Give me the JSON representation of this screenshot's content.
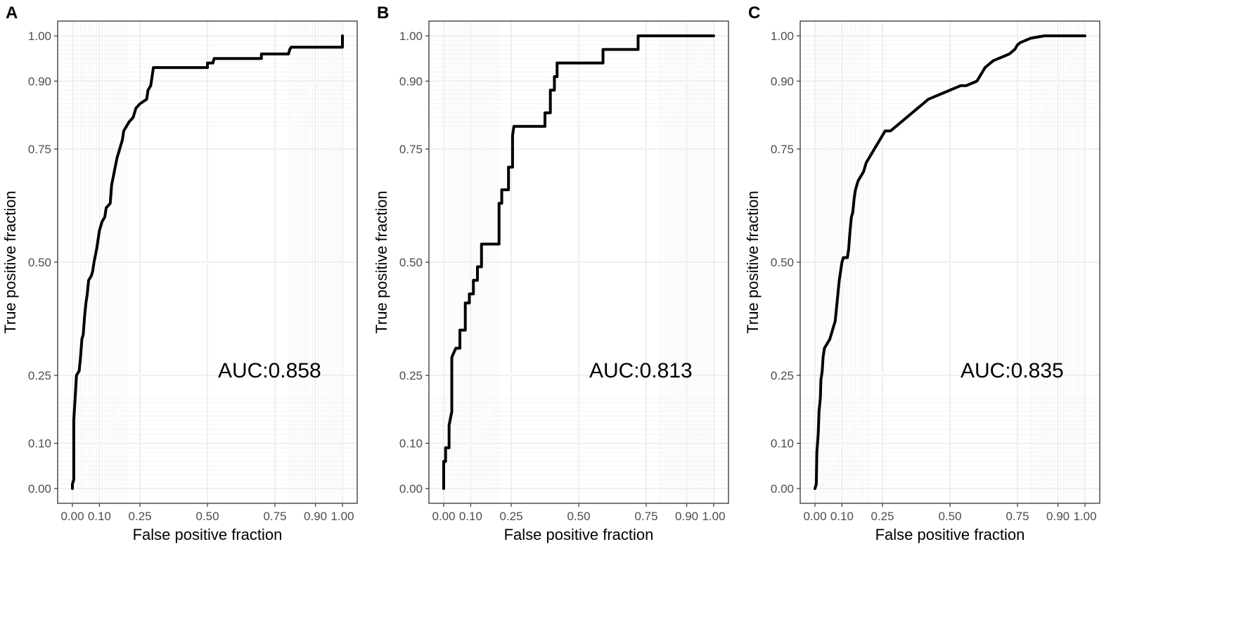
{
  "chart_data": [
    {
      "panel": "A",
      "type": "line",
      "xlabel": "False positive fraction",
      "ylabel": "True positive fraction",
      "xlim": [
        0,
        1
      ],
      "ylim": [
        0,
        1
      ],
      "x_ticks": [
        "0.00",
        "0.10",
        "0.25",
        "0.50",
        "0.75",
        "0.90",
        "1.00"
      ],
      "y_ticks": [
        "0.00",
        "0.10",
        "0.25",
        "0.50",
        "0.75",
        "0.90",
        "1.00"
      ],
      "annotation": "AUC:0.858",
      "series": [
        {
          "name": "ROC",
          "points": [
            [
              0,
              0
            ],
            [
              0,
              0.01
            ],
            [
              0.005,
              0.02
            ],
            [
              0.005,
              0.15
            ],
            [
              0.01,
              0.2
            ],
            [
              0.015,
              0.25
            ],
            [
              0.025,
              0.26
            ],
            [
              0.03,
              0.29
            ],
            [
              0.035,
              0.33
            ],
            [
              0.04,
              0.34
            ],
            [
              0.045,
              0.38
            ],
            [
              0.05,
              0.41
            ],
            [
              0.055,
              0.43
            ],
            [
              0.06,
              0.46
            ],
            [
              0.07,
              0.47
            ],
            [
              0.075,
              0.48
            ],
            [
              0.08,
              0.5
            ],
            [
              0.09,
              0.53
            ],
            [
              0.095,
              0.55
            ],
            [
              0.1,
              0.57
            ],
            [
              0.11,
              0.59
            ],
            [
              0.12,
              0.6
            ],
            [
              0.125,
              0.62
            ],
            [
              0.14,
              0.63
            ],
            [
              0.145,
              0.67
            ],
            [
              0.155,
              0.7
            ],
            [
              0.165,
              0.73
            ],
            [
              0.175,
              0.75
            ],
            [
              0.185,
              0.77
            ],
            [
              0.19,
              0.79
            ],
            [
              0.2,
              0.8
            ],
            [
              0.21,
              0.81
            ],
            [
              0.225,
              0.82
            ],
            [
              0.235,
              0.84
            ],
            [
              0.25,
              0.85
            ],
            [
              0.275,
              0.86
            ],
            [
              0.28,
              0.88
            ],
            [
              0.29,
              0.89
            ],
            [
              0.3,
              0.93
            ],
            [
              0.33,
              0.93
            ],
            [
              0.39,
              0.93
            ],
            [
              0.5,
              0.93
            ],
            [
              0.5,
              0.94
            ],
            [
              0.52,
              0.94
            ],
            [
              0.525,
              0.95
            ],
            [
              0.7,
              0.95
            ],
            [
              0.7,
              0.96
            ],
            [
              0.8,
              0.96
            ],
            [
              0.805,
              0.97
            ],
            [
              0.81,
              0.975
            ],
            [
              1,
              0.975
            ],
            [
              1,
              1
            ]
          ]
        }
      ]
    },
    {
      "panel": "B",
      "type": "line",
      "xlabel": "False positive fraction",
      "ylabel": "True positive fraction",
      "xlim": [
        0,
        1
      ],
      "ylim": [
        0,
        1
      ],
      "x_ticks": [
        "0.00",
        "0.10",
        "0.25",
        "0.50",
        "0.75",
        "0.90",
        "1.00"
      ],
      "y_ticks": [
        "0.00",
        "0.10",
        "0.25",
        "0.50",
        "0.75",
        "0.90",
        "1.00"
      ],
      "annotation": "AUC:0.813",
      "series": [
        {
          "name": "ROC",
          "points": [
            [
              0,
              0
            ],
            [
              0,
              0.06
            ],
            [
              0.007,
              0.06
            ],
            [
              0.007,
              0.09
            ],
            [
              0.02,
              0.09
            ],
            [
              0.02,
              0.14
            ],
            [
              0.03,
              0.17
            ],
            [
              0.03,
              0.29
            ],
            [
              0.045,
              0.31
            ],
            [
              0.06,
              0.31
            ],
            [
              0.06,
              0.35
            ],
            [
              0.08,
              0.35
            ],
            [
              0.08,
              0.41
            ],
            [
              0.095,
              0.41
            ],
            [
              0.095,
              0.43
            ],
            [
              0.11,
              0.43
            ],
            [
              0.11,
              0.46
            ],
            [
              0.125,
              0.46
            ],
            [
              0.125,
              0.49
            ],
            [
              0.14,
              0.49
            ],
            [
              0.14,
              0.54
            ],
            [
              0.205,
              0.54
            ],
            [
              0.205,
              0.63
            ],
            [
              0.215,
              0.63
            ],
            [
              0.215,
              0.66
            ],
            [
              0.24,
              0.66
            ],
            [
              0.24,
              0.71
            ],
            [
              0.255,
              0.71
            ],
            [
              0.255,
              0.78
            ],
            [
              0.26,
              0.8
            ],
            [
              0.3,
              0.8
            ],
            [
              0.375,
              0.8
            ],
            [
              0.375,
              0.83
            ],
            [
              0.395,
              0.83
            ],
            [
              0.395,
              0.88
            ],
            [
              0.41,
              0.88
            ],
            [
              0.41,
              0.91
            ],
            [
              0.42,
              0.91
            ],
            [
              0.42,
              0.94
            ],
            [
              0.59,
              0.94
            ],
            [
              0.59,
              0.97
            ],
            [
              0.72,
              0.97
            ],
            [
              0.72,
              1
            ],
            [
              1,
              1
            ]
          ]
        }
      ]
    },
    {
      "panel": "C",
      "type": "line",
      "xlabel": "False positive fraction",
      "ylabel": "True positive fraction",
      "xlim": [
        0,
        1
      ],
      "ylim": [
        0,
        1
      ],
      "x_ticks": [
        "0.00",
        "0.10",
        "0.25",
        "0.50",
        "0.75",
        "0.90",
        "1.00"
      ],
      "y_ticks": [
        "0.00",
        "0.10",
        "0.25",
        "0.50",
        "0.75",
        "0.90",
        "1.00"
      ],
      "annotation": "AUC:0.835",
      "series": [
        {
          "name": "ROC",
          "points": [
            [
              0,
              0
            ],
            [
              0.005,
              0.01
            ],
            [
              0.007,
              0.08
            ],
            [
              0.012,
              0.12
            ],
            [
              0.015,
              0.17
            ],
            [
              0.02,
              0.2
            ],
            [
              0.022,
              0.24
            ],
            [
              0.027,
              0.26
            ],
            [
              0.03,
              0.29
            ],
            [
              0.035,
              0.31
            ],
            [
              0.045,
              0.32
            ],
            [
              0.055,
              0.33
            ],
            [
              0.065,
              0.35
            ],
            [
              0.075,
              0.37
            ],
            [
              0.08,
              0.4
            ],
            [
              0.085,
              0.43
            ],
            [
              0.09,
              0.46
            ],
            [
              0.095,
              0.48
            ],
            [
              0.1,
              0.5
            ],
            [
              0.105,
              0.51
            ],
            [
              0.12,
              0.51
            ],
            [
              0.125,
              0.53
            ],
            [
              0.13,
              0.57
            ],
            [
              0.135,
              0.6
            ],
            [
              0.14,
              0.61
            ],
            [
              0.145,
              0.64
            ],
            [
              0.15,
              0.66
            ],
            [
              0.16,
              0.68
            ],
            [
              0.17,
              0.69
            ],
            [
              0.18,
              0.7
            ],
            [
              0.19,
              0.72
            ],
            [
              0.2,
              0.73
            ],
            [
              0.21,
              0.74
            ],
            [
              0.22,
              0.75
            ],
            [
              0.23,
              0.76
            ],
            [
              0.24,
              0.77
            ],
            [
              0.25,
              0.78
            ],
            [
              0.26,
              0.79
            ],
            [
              0.28,
              0.79
            ],
            [
              0.3,
              0.8
            ],
            [
              0.32,
              0.81
            ],
            [
              0.34,
              0.82
            ],
            [
              0.36,
              0.83
            ],
            [
              0.38,
              0.84
            ],
            [
              0.4,
              0.85
            ],
            [
              0.42,
              0.86
            ],
            [
              0.44,
              0.865
            ],
            [
              0.46,
              0.87
            ],
            [
              0.48,
              0.875
            ],
            [
              0.5,
              0.88
            ],
            [
              0.52,
              0.885
            ],
            [
              0.54,
              0.89
            ],
            [
              0.56,
              0.89
            ],
            [
              0.58,
              0.895
            ],
            [
              0.6,
              0.9
            ],
            [
              0.61,
              0.91
            ],
            [
              0.63,
              0.93
            ],
            [
              0.64,
              0.935
            ],
            [
              0.66,
              0.945
            ],
            [
              0.68,
              0.95
            ],
            [
              0.7,
              0.955
            ],
            [
              0.72,
              0.96
            ],
            [
              0.74,
              0.97
            ],
            [
              0.75,
              0.98
            ],
            [
              0.76,
              0.985
            ],
            [
              0.78,
              0.99
            ],
            [
              0.8,
              0.995
            ],
            [
              0.85,
              1
            ],
            [
              1,
              1
            ]
          ]
        }
      ]
    }
  ]
}
